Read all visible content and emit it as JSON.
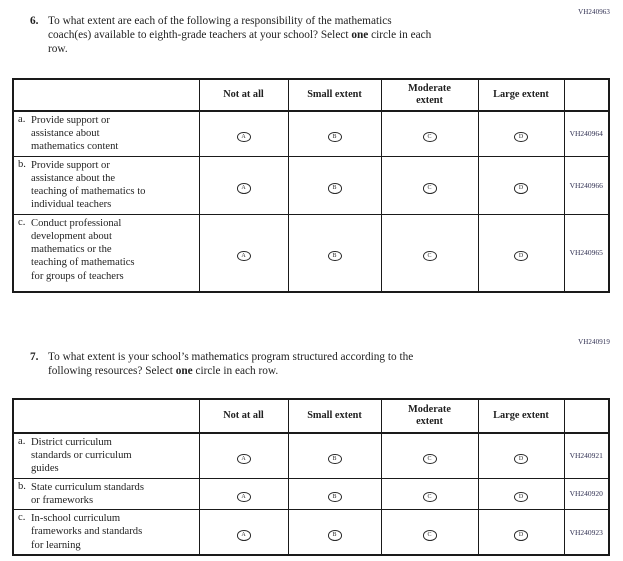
{
  "colors": {
    "text": "#1f1f1f",
    "border": "#1a1a1a",
    "code_text": "#2e2e50",
    "background": "#ffffff"
  },
  "questions": [
    {
      "code": "VH240963",
      "number": "6.",
      "text_pre": "To what extent are each of the following a responsibility of the mathematics\ncoach(es) available to eighth-grade teachers at your school? Select ",
      "text_bold": "one",
      "text_post": " circle in each\nrow.",
      "table": {
        "col_headers": [
          "Not at all",
          "Small extent",
          "Moderate\nextent",
          "Large extent"
        ],
        "rows": [
          {
            "letter": "a.",
            "label": "Provide support or\nassistance about\nmathematics content",
            "options": [
              "A",
              "B",
              "C",
              "D"
            ],
            "code": "VH240964"
          },
          {
            "letter": "b.",
            "label": "Provide support or\nassistance about the\nteaching of mathematics to\nindividual teachers",
            "options": [
              "A",
              "B",
              "C",
              "D"
            ],
            "code": "VH240966"
          },
          {
            "letter": "c.",
            "label": "Conduct professional\ndevelopment about\nmathematics or the\nteaching of mathematics\nfor groups of teachers",
            "options": [
              "A",
              "B",
              "C",
              "D"
            ],
            "code": "VH240965"
          }
        ]
      }
    },
    {
      "code": "VH240919",
      "number": "7.",
      "text_pre": "To what extent is your school’s mathematics program structured according to the\nfollowing resources? Select ",
      "text_bold": "one",
      "text_post": " circle in each row.",
      "table": {
        "col_headers": [
          "Not at all",
          "Small extent",
          "Moderate\nextent",
          "Large extent"
        ],
        "rows": [
          {
            "letter": "a.",
            "label": "District curriculum\nstandards or curriculum\nguides",
            "options": [
              "A",
              "B",
              "C",
              "D"
            ],
            "code": "VH240921"
          },
          {
            "letter": "b.",
            "label": "State curriculum standards\nor frameworks",
            "options": [
              "A",
              "B",
              "C",
              "D"
            ],
            "code": "VH240920"
          },
          {
            "letter": "c.",
            "label": "In-school curriculum\nframeworks and standards\nfor learning",
            "options": [
              "A",
              "B",
              "C",
              "D"
            ],
            "code": "VH240923"
          }
        ]
      }
    }
  ]
}
